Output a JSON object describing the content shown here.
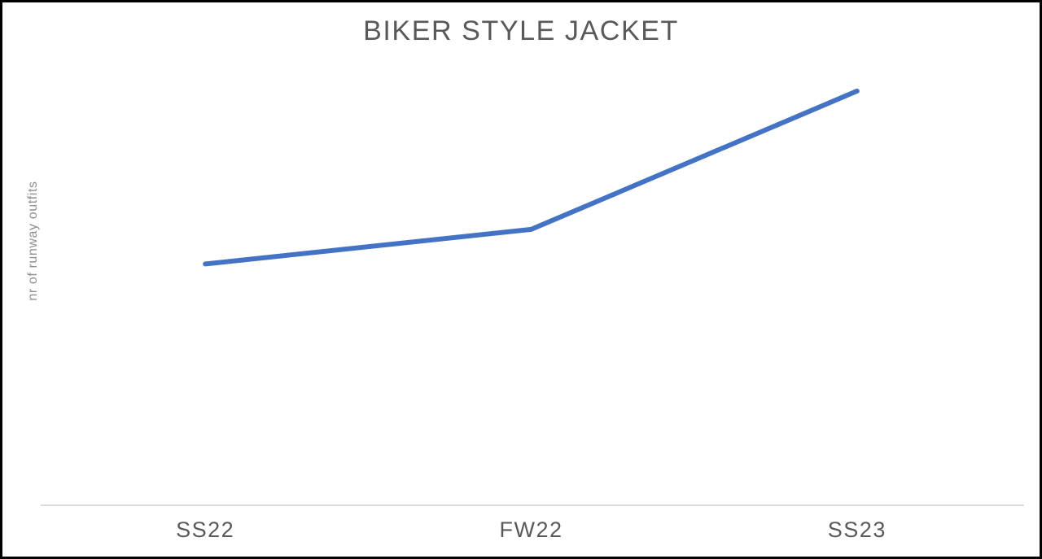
{
  "page": {
    "title": "BIKER STYLE JACKET"
  },
  "chart_data": {
    "type": "line",
    "title": "BIKER STYLE JACKET",
    "xlabel": "",
    "ylabel": "nr of runway outfits",
    "categories": [
      "SS22",
      "FW22",
      "SS23"
    ],
    "series": [
      {
        "name": "nr of runway outfits",
        "values": [
          14,
          16,
          24
        ]
      }
    ],
    "values": [
      14,
      16,
      24
    ],
    "ylim": [
      0,
      25.5
    ],
    "grid": false,
    "legend": "none",
    "y_tick_labels_visible": false,
    "colors": {
      "line": "#4472C4",
      "title_text": "#595959",
      "tick_text": "#595959",
      "ylabel_text": "#8F8F8F",
      "axis_line": "#DBDBDB",
      "background": "#FFFFFF",
      "border": "#000000"
    }
  }
}
